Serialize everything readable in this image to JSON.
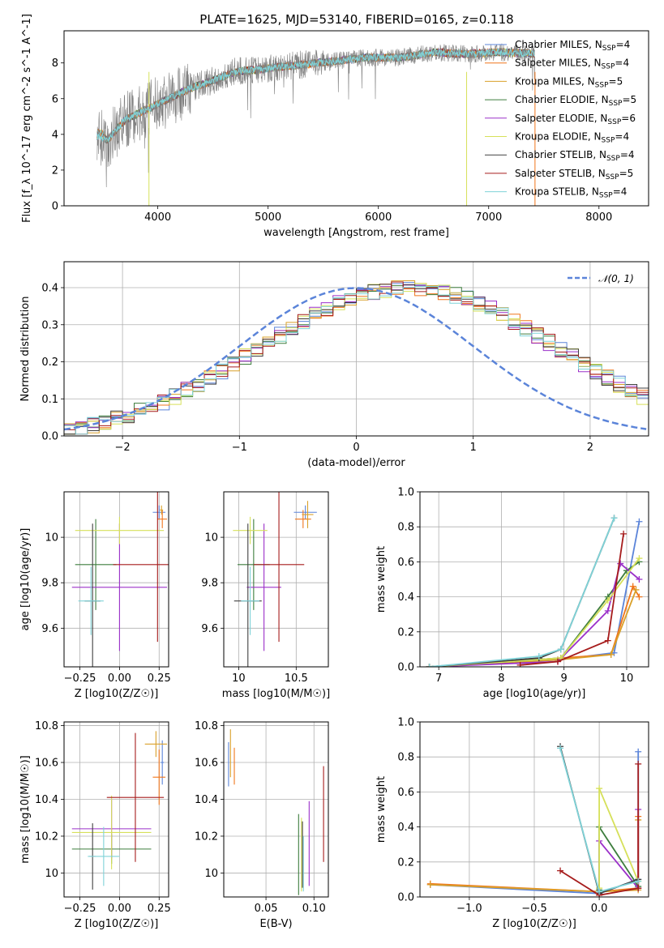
{
  "figure": {
    "title": "PLATE=1625, MJD=53140, FIBERID=0165, z=0.118"
  },
  "chart_data": [
    {
      "id": "spectrum",
      "type": "line",
      "title": "PLATE=1625, MJD=53140, FIBERID=0165, z=0.118",
      "xlabel": "wavelength [Angstrom, rest frame]",
      "ylabel": "Flux [f_λ 10^-17 erg cm^-2 s^-1 A^-1]",
      "xlim": [
        3150,
        8450
      ],
      "ylim": [
        0,
        9.8
      ],
      "xticks": [
        4000,
        5000,
        6000,
        7000,
        8000
      ],
      "yticks": [
        0,
        2,
        4,
        6,
        8
      ],
      "grid": false,
      "legend_position": "right",
      "observed_envelope": {
        "x": [
          3450,
          3550,
          3700,
          3900,
          4100,
          4300,
          4500,
          4700,
          5000,
          5300,
          5600,
          5900,
          6200,
          6500,
          6800,
          7100,
          7420
        ],
        "y": [
          3.9,
          3.7,
          4.8,
          5.4,
          6.0,
          6.6,
          7.0,
          7.5,
          7.7,
          7.9,
          8.1,
          8.3,
          8.3,
          8.6,
          8.5,
          8.6,
          8.5
        ]
      },
      "legend": [
        {
          "label": "Chabrier MILES, N",
          "sub": "SSP",
          "suffix": "=4",
          "color": "#5b84d9"
        },
        {
          "label": "Salpeter MILES, N",
          "sub": "SSP",
          "suffix": "=4",
          "color": "#f0761c"
        },
        {
          "label": "Kroupa MILES, N",
          "sub": "SSP",
          "suffix": "=5",
          "color": "#d9a02a"
        },
        {
          "label": "Chabrier ELODIE, N",
          "sub": "SSP",
          "suffix": "=5",
          "color": "#3d7d3d"
        },
        {
          "label": "Salpeter ELODIE, N",
          "sub": "SSP",
          "suffix": "=6",
          "color": "#9b30c9"
        },
        {
          "label": "Kroupa ELODIE, N",
          "sub": "SSP",
          "suffix": "=4",
          "color": "#d6e05a"
        },
        {
          "label": "Chabrier STELIB, N",
          "sub": "SSP",
          "suffix": "=4",
          "color": "#404040"
        },
        {
          "label": "Salpeter STELIB, N",
          "sub": "SSP",
          "suffix": "=5",
          "color": "#a61c1c"
        },
        {
          "label": "Kroupa STELIB, N",
          "sub": "SSP",
          "suffix": "=4",
          "color": "#7fd3d8"
        }
      ]
    },
    {
      "id": "residuals",
      "type": "line",
      "xlabel": "(data-model)/error",
      "ylabel": "Normed distribution",
      "xlim": [
        -2.5,
        2.5
      ],
      "ylim": [
        0,
        0.47
      ],
      "xticks": [
        -2,
        -1,
        0,
        1,
        2
      ],
      "xtick_labels": [
        "−2",
        "−1",
        "0",
        "1",
        "2"
      ],
      "yticks": [
        0.0,
        0.1,
        0.2,
        0.3,
        0.4
      ],
      "grid": true,
      "legend": [
        {
          "label": "𝒩(0, 1)",
          "color": "#5b84d9",
          "style": "dashed"
        }
      ],
      "hist_bin_width": 0.1,
      "hist_bin_start": -2.5,
      "hist_base": [
        0.018,
        0.022,
        0.028,
        0.035,
        0.045,
        0.055,
        0.066,
        0.079,
        0.092,
        0.107,
        0.123,
        0.139,
        0.157,
        0.176,
        0.195,
        0.214,
        0.233,
        0.252,
        0.272,
        0.291,
        0.309,
        0.327,
        0.343,
        0.358,
        0.37,
        0.38,
        0.389,
        0.395,
        0.398,
        0.4,
        0.398,
        0.395,
        0.389,
        0.38,
        0.37,
        0.358,
        0.343,
        0.327,
        0.309,
        0.291,
        0.272,
        0.252,
        0.233,
        0.214,
        0.195,
        0.176,
        0.157,
        0.139,
        0.123,
        0.107
      ]
    },
    {
      "id": "age-vs-Z",
      "type": "scatter",
      "xlabel": "Z [log10(Z/Z☉)]",
      "ylabel": "age  [log10(age/yr)]",
      "xlim": [
        -0.35,
        0.31
      ],
      "ylim": [
        9.43,
        10.2
      ],
      "xticks": [
        -0.25,
        0.0,
        0.25
      ],
      "xtick_labels": [
        "−0.25",
        "0.00",
        "0.25"
      ],
      "yticks": [
        9.6,
        9.8,
        10.0
      ],
      "grid": true,
      "points": [
        {
          "model": "Chabrier MILES",
          "x": 0.25,
          "xerr": 0.04,
          "y": 10.11,
          "yerr": 0.03
        },
        {
          "model": "Salpeter MILES",
          "x": 0.27,
          "xerr": 0.03,
          "y": 10.08,
          "yerr": 0.04
        },
        {
          "model": "Kroupa MILES",
          "x": 0.265,
          "xerr": 0.01,
          "y": 10.12,
          "yerr": 0.02
        },
        {
          "model": "Chabrier ELODIE",
          "x": -0.15,
          "xerr": 0.13,
          "y": 9.88,
          "yerr": 0.2
        },
        {
          "model": "Salpeter ELODIE",
          "x": 0.0,
          "xerr": 0.3,
          "y": 9.78,
          "yerr": 0.28
        },
        {
          "model": "Kroupa ELODIE",
          "x": 0.0,
          "xerr": 0.28,
          "y": 10.03,
          "yerr": 0.06
        },
        {
          "model": "Chabrier STELIB",
          "x": -0.17,
          "xerr": 0.05,
          "y": 9.72,
          "yerr": 0.34
        },
        {
          "model": "Salpeter STELIB",
          "x": 0.24,
          "xerr": 0.28,
          "y": 9.88,
          "yerr": 0.34
        },
        {
          "model": "Kroupa STELIB",
          "x": -0.18,
          "xerr": 0.08,
          "y": 9.72,
          "yerr": 0.15
        }
      ]
    },
    {
      "id": "age-vs-mass",
      "type": "scatter",
      "xlabel": "mass [log10(M/M☉)]",
      "ylabel": "",
      "xlim": [
        9.87,
        10.78
      ],
      "ylim": [
        9.43,
        10.2
      ],
      "xticks": [
        10.0,
        10.5
      ],
      "yticks": [
        9.6,
        9.8,
        10.0
      ],
      "grid": true,
      "points": [
        {
          "model": "Chabrier MILES",
          "x": 10.58,
          "xerr": 0.1,
          "y": 10.11,
          "yerr": 0.03
        },
        {
          "model": "Salpeter MILES",
          "x": 10.56,
          "xerr": 0.07,
          "y": 10.08,
          "yerr": 0.04
        },
        {
          "model": "Kroupa MILES",
          "x": 10.6,
          "xerr": 0.05,
          "y": 10.1,
          "yerr": 0.06
        },
        {
          "model": "Chabrier ELODIE",
          "x": 10.13,
          "xerr": 0.14,
          "y": 9.88,
          "yerr": 0.2
        },
        {
          "model": "Salpeter ELODIE",
          "x": 10.22,
          "xerr": 0.15,
          "y": 9.78,
          "yerr": 0.28
        },
        {
          "model": "Kroupa ELODIE",
          "x": 10.1,
          "xerr": 0.15,
          "y": 10.03,
          "yerr": 0.06
        },
        {
          "model": "Chabrier STELIB",
          "x": 10.08,
          "xerr": 0.12,
          "y": 9.72,
          "yerr": 0.34
        },
        {
          "model": "Salpeter STELIB",
          "x": 10.35,
          "xerr": 0.22,
          "y": 9.88,
          "yerr": 0.34
        },
        {
          "model": "Kroupa STELIB",
          "x": 10.1,
          "xerr": 0.08,
          "y": 9.72,
          "yerr": 0.15
        }
      ]
    },
    {
      "id": "mass-weight-vs-age",
      "type": "line",
      "xlabel": "age  [log10(age/yr)]",
      "ylabel": "mass weight",
      "xlim": [
        6.7,
        10.35
      ],
      "ylim": [
        0,
        1.0
      ],
      "xticks": [
        7,
        8,
        9,
        10
      ],
      "yticks": [
        0.0,
        0.2,
        0.4,
        0.6,
        0.8,
        1.0
      ],
      "grid": true,
      "series": [
        {
          "model": "Chabrier MILES",
          "x": [
            6.85,
            8.9,
            9.8,
            10.2
          ],
          "y": [
            0.0,
            0.04,
            0.08,
            0.83
          ]
        },
        {
          "model": "Salpeter MILES",
          "x": [
            6.85,
            8.95,
            9.75,
            10.1,
            10.2
          ],
          "y": [
            0.0,
            0.05,
            0.07,
            0.46,
            0.4
          ]
        },
        {
          "model": "Kroupa MILES",
          "x": [
            6.85,
            8.9,
            9.75,
            10.15
          ],
          "y": [
            0.0,
            0.04,
            0.07,
            0.44
          ]
        },
        {
          "model": "Chabrier ELODIE",
          "x": [
            6.85,
            8.95,
            9.7,
            10.0,
            10.2
          ],
          "y": [
            0.0,
            0.05,
            0.4,
            0.55,
            0.6
          ]
        },
        {
          "model": "Salpeter ELODIE",
          "x": [
            6.85,
            8.9,
            9.7,
            9.9,
            10.2
          ],
          "y": [
            0.0,
            0.03,
            0.32,
            0.59,
            0.5
          ]
        },
        {
          "model": "Kroupa ELODIE",
          "x": [
            6.85,
            8.95,
            9.7,
            10.2
          ],
          "y": [
            0.0,
            0.05,
            0.38,
            0.62
          ]
        },
        {
          "model": "Chabrier STELIB",
          "x": [
            6.85,
            8.6,
            8.95,
            9.8
          ],
          "y": [
            0.0,
            0.05,
            0.1,
            0.85
          ]
        },
        {
          "model": "Salpeter STELIB",
          "x": [
            8.3,
            8.9,
            9.7,
            9.95
          ],
          "y": [
            0.01,
            0.03,
            0.15,
            0.76
          ]
        },
        {
          "model": "Kroupa STELIB",
          "x": [
            6.85,
            8.6,
            8.95,
            9.8
          ],
          "y": [
            0.0,
            0.06,
            0.1,
            0.85
          ]
        }
      ]
    },
    {
      "id": "mass-vs-Z",
      "type": "scatter",
      "xlabel": "Z [log10(Z/Z☉)]",
      "ylabel": "mass [log10(M/M☉)]",
      "xlim": [
        -0.35,
        0.31
      ],
      "ylim": [
        9.87,
        10.82
      ],
      "xticks": [
        -0.25,
        0.0,
        0.25
      ],
      "xtick_labels": [
        "−0.25",
        "0.00",
        "0.25"
      ],
      "yticks": [
        10.0,
        10.2,
        10.4,
        10.6,
        10.8
      ],
      "grid": true,
      "points": [
        {
          "model": "Chabrier MILES",
          "x": 0.27,
          "xerr": 0.01,
          "y": 10.6,
          "yerr": 0.12
        },
        {
          "model": "Salpeter MILES",
          "x": 0.25,
          "xerr": 0.04,
          "y": 10.52,
          "yerr": 0.15
        },
        {
          "model": "Kroupa MILES",
          "x": 0.23,
          "xerr": 0.07,
          "y": 10.7,
          "yerr": 0.07
        },
        {
          "model": "Chabrier ELODIE",
          "x": -0.05,
          "xerr": 0.25,
          "y": 10.13,
          "yerr": 0.08
        },
        {
          "model": "Salpeter ELODIE",
          "x": -0.05,
          "xerr": 0.25,
          "y": 10.24,
          "yerr": 0.16
        },
        {
          "model": "Kroupa ELODIE",
          "x": -0.05,
          "xerr": 0.25,
          "y": 10.22,
          "yerr": 0.2
        },
        {
          "model": "Chabrier STELIB",
          "x": -0.17,
          "xerr": 0.02,
          "y": 10.09,
          "yerr": 0.18
        },
        {
          "model": "Salpeter STELIB",
          "x": 0.1,
          "xerr": 0.18,
          "y": 10.41,
          "yerr": 0.35
        },
        {
          "model": "Kroupa STELIB",
          "x": -0.1,
          "xerr": 0.1,
          "y": 10.09,
          "yerr": 0.16
        }
      ]
    },
    {
      "id": "mass-vs-ebv",
      "type": "scatter",
      "xlabel": "E(B-V)",
      "ylabel": "",
      "xlim": [
        0.006,
        0.115
      ],
      "ylim": [
        9.87,
        10.82
      ],
      "xticks": [
        0.05,
        0.1
      ],
      "xtick_labels": [
        "0.05",
        "0.10"
      ],
      "yticks": [
        10.0,
        10.2,
        10.4,
        10.6,
        10.8
      ],
      "grid": true,
      "points": [
        {
          "model": "Chabrier MILES",
          "x": 0.011,
          "xerr": 0.0,
          "y": 10.59,
          "yerr": 0.12
        },
        {
          "model": "Salpeter MILES",
          "x": 0.017,
          "xerr": 0.0,
          "y": 10.58,
          "yerr": 0.1
        },
        {
          "model": "Kroupa MILES",
          "x": 0.013,
          "xerr": 0.0,
          "y": 10.65,
          "yerr": 0.13
        },
        {
          "model": "Chabrier ELODIE",
          "x": 0.084,
          "xerr": 0.0,
          "y": 10.1,
          "yerr": 0.22
        },
        {
          "model": "Salpeter ELODIE",
          "x": 0.095,
          "xerr": 0.0,
          "y": 10.16,
          "yerr": 0.23
        },
        {
          "model": "Kroupa ELODIE",
          "x": 0.087,
          "xerr": 0.0,
          "y": 10.1,
          "yerr": 0.2
        },
        {
          "model": "Chabrier STELIB",
          "x": 0.088,
          "xerr": 0.0,
          "y": 10.1,
          "yerr": 0.18
        },
        {
          "model": "Salpeter STELIB",
          "x": 0.11,
          "xerr": 0.0,
          "y": 10.32,
          "yerr": 0.26
        },
        {
          "model": "Kroupa STELIB",
          "x": 0.089,
          "xerr": 0.0,
          "y": 10.05,
          "yerr": 0.15
        }
      ]
    },
    {
      "id": "mass-weight-vs-Z",
      "type": "line",
      "xlabel": "Z [log10(Z/Z☉)]",
      "ylabel": "mass weight",
      "xlim": [
        -1.38,
        0.38
      ],
      "ylim": [
        0,
        1.0
      ],
      "xticks": [
        -1.0,
        -0.5,
        0.0
      ],
      "xtick_labels": [
        "−1.0",
        "−0.5",
        "0.0"
      ],
      "yticks": [
        0.0,
        0.2,
        0.4,
        0.6,
        0.8,
        1.0
      ],
      "grid": true,
      "series": [
        {
          "model": "Chabrier MILES",
          "x": [
            -1.3,
            0.0,
            0.3,
            0.3
          ],
          "y": [
            0.07,
            0.02,
            0.1,
            0.83
          ]
        },
        {
          "model": "Salpeter MILES",
          "x": [
            -1.3,
            0.0,
            0.3,
            0.3
          ],
          "y": [
            0.075,
            0.03,
            0.05,
            0.46
          ]
        },
        {
          "model": "Kroupa MILES",
          "x": [
            -1.3,
            0.0,
            0.3,
            0.3
          ],
          "y": [
            0.07,
            0.03,
            0.04,
            0.44
          ]
        },
        {
          "model": "Chabrier ELODIE",
          "x": [
            0.0,
            0.0,
            0.3
          ],
          "y": [
            0.04,
            0.4,
            0.06
          ]
        },
        {
          "model": "Salpeter ELODIE",
          "x": [
            0.0,
            0.0,
            0.3,
            0.3
          ],
          "y": [
            0.03,
            0.32,
            0.05,
            0.5
          ]
        },
        {
          "model": "Kroupa ELODIE",
          "x": [
            0.0,
            0.0,
            0.3
          ],
          "y": [
            0.05,
            0.62,
            0.09
          ]
        },
        {
          "model": "Chabrier STELIB",
          "x": [
            -0.3,
            0.0,
            0.3
          ],
          "y": [
            0.86,
            0.02,
            0.1
          ]
        },
        {
          "model": "Salpeter STELIB",
          "x": [
            -0.3,
            0.0,
            0.3,
            0.3
          ],
          "y": [
            0.15,
            0.01,
            0.05,
            0.76
          ]
        },
        {
          "model": "Kroupa STELIB",
          "x": [
            -0.3,
            0.0,
            0.3
          ],
          "y": [
            0.85,
            0.03,
            0.09
          ]
        }
      ]
    }
  ]
}
